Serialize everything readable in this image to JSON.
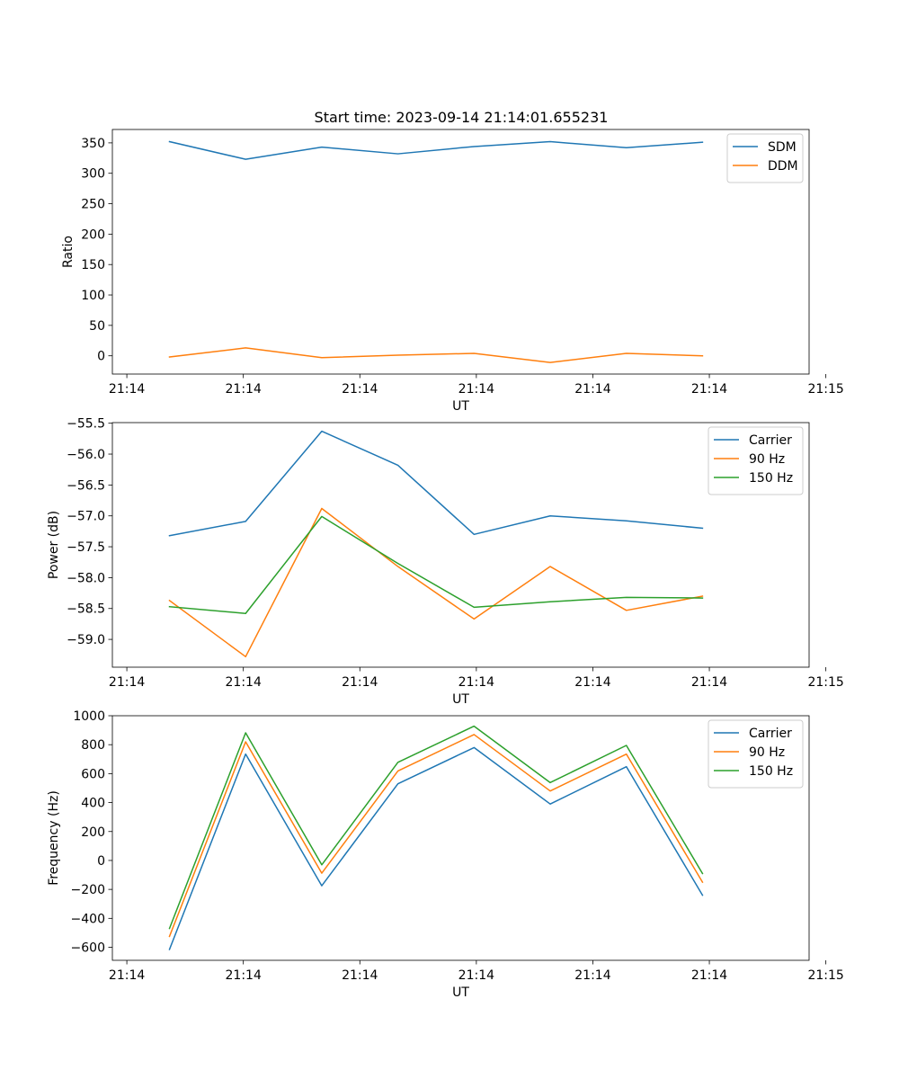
{
  "figure": {
    "title": "Start time: 2023-09-14 21:14:01.655231"
  },
  "colors": {
    "blue": "#1f77b4",
    "orange": "#ff7f0e",
    "green": "#2ca02c"
  },
  "chart_data": [
    {
      "type": "line",
      "title": "Start time: 2023-09-14 21:14:01.655231",
      "xlabel": "UT",
      "ylabel": "Ratio",
      "x": [
        1,
        2,
        3,
        4,
        5,
        6,
        7,
        8
      ],
      "xlim": [
        0.25,
        9.4
      ],
      "xticks": [
        0.44,
        1.97,
        3.5,
        5.03,
        6.56,
        8.09,
        9.62
      ],
      "xtick_labels": [
        "21:14",
        "21:14",
        "21:14",
        "21:14",
        "21:14",
        "21:14",
        "21:15"
      ],
      "ylim": [
        -30,
        372
      ],
      "yticks": [
        0,
        50,
        100,
        150,
        200,
        250,
        300,
        350
      ],
      "ytick_labels": [
        "0",
        "50",
        "100",
        "150",
        "200",
        "250",
        "300",
        "350"
      ],
      "legend": "top-right",
      "series": [
        {
          "name": "SDM",
          "color": "#1f77b4",
          "values": [
            352,
            323,
            343,
            332,
            344,
            352,
            342,
            351
          ]
        },
        {
          "name": "DDM",
          "color": "#ff7f0e",
          "values": [
            -2,
            13,
            -3,
            1,
            4,
            -11,
            4,
            0
          ]
        }
      ]
    },
    {
      "type": "line",
      "title": "",
      "xlabel": "UT",
      "ylabel": "Power (dB)",
      "x": [
        1,
        2,
        3,
        4,
        5,
        6,
        7,
        8
      ],
      "xlim": [
        0.25,
        9.4
      ],
      "xticks": [
        0.44,
        1.97,
        3.5,
        5.03,
        6.56,
        8.09,
        9.62
      ],
      "xtick_labels": [
        "21:14",
        "21:14",
        "21:14",
        "21:14",
        "21:14",
        "21:14",
        "21:15"
      ],
      "ylim": [
        -59.45,
        -55.49
      ],
      "yticks": [
        -59.0,
        -58.5,
        -58.0,
        -57.5,
        -57.0,
        -56.5,
        -56.0,
        -55.5
      ],
      "ytick_labels": [
        "−59.0",
        "−58.5",
        "−58.0",
        "−57.5",
        "−57.0",
        "−56.5",
        "−56.0",
        "−55.5"
      ],
      "legend": "top-right",
      "series": [
        {
          "name": "Carrier",
          "color": "#1f77b4",
          "values": [
            -57.32,
            -57.09,
            -55.63,
            -56.18,
            -57.3,
            -57.0,
            -57.08,
            -57.2
          ]
        },
        {
          "name": "90 Hz",
          "color": "#ff7f0e",
          "values": [
            -58.37,
            -59.28,
            -56.88,
            -57.82,
            -58.67,
            -57.82,
            -58.53,
            -58.3
          ]
        },
        {
          "name": "150 Hz",
          "color": "#2ca02c",
          "values": [
            -58.47,
            -58.58,
            -57.01,
            -57.77,
            -58.48,
            -58.39,
            -58.32,
            -58.33
          ]
        }
      ]
    },
    {
      "type": "line",
      "title": "",
      "xlabel": "UT",
      "ylabel": "Frequency (Hz)",
      "x": [
        1,
        2,
        3,
        4,
        5,
        6,
        7,
        8
      ],
      "xlim": [
        0.25,
        9.4
      ],
      "xticks": [
        0.44,
        1.97,
        3.5,
        5.03,
        6.56,
        8.09,
        9.62
      ],
      "xtick_labels": [
        "21:14",
        "21:14",
        "21:14",
        "21:14",
        "21:14",
        "21:14",
        "21:15"
      ],
      "ylim": [
        -690,
        1000
      ],
      "yticks": [
        -600,
        -400,
        -200,
        0,
        200,
        400,
        600,
        800,
        1000
      ],
      "ytick_labels": [
        "−600",
        "−400",
        "−200",
        "0",
        "200",
        "400",
        "600",
        "800",
        "1000"
      ],
      "legend": "top-right",
      "series": [
        {
          "name": "Carrier",
          "color": "#1f77b4",
          "values": [
            -615,
            735,
            -175,
            530,
            780,
            390,
            648,
            -240
          ]
        },
        {
          "name": "90 Hz",
          "color": "#ff7f0e",
          "values": [
            -525,
            820,
            -88,
            618,
            870,
            480,
            735,
            -150
          ]
        },
        {
          "name": "150 Hz",
          "color": "#2ca02c",
          "values": [
            -470,
            882,
            -30,
            678,
            928,
            538,
            795,
            -90
          ]
        }
      ]
    }
  ]
}
